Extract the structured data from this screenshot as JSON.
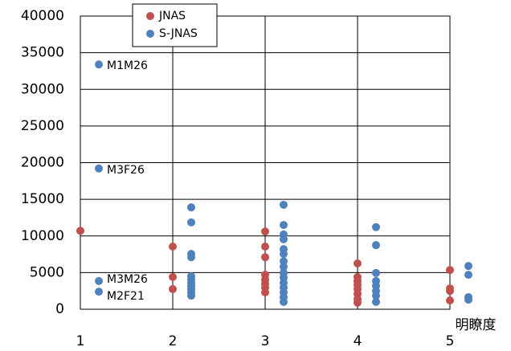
{
  "chart_data": {
    "type": "scatter",
    "x_label": "明瞭度",
    "xlim": [
      1,
      5
    ],
    "xticks": [
      1,
      2,
      3,
      4,
      5
    ],
    "ylim": [
      0,
      40000
    ],
    "yticks": [
      0,
      5000,
      10000,
      15000,
      20000,
      25000,
      30000,
      35000,
      40000
    ],
    "grid": true,
    "legend": "top",
    "series": [
      {
        "name": "JNAS",
        "color": "#c0504d",
        "x": [
          1,
          2,
          2,
          2,
          3,
          3,
          3,
          3,
          3,
          3,
          3,
          3,
          4,
          4,
          4,
          4,
          4,
          4,
          4,
          4,
          5,
          5,
          5,
          5
        ],
        "values": [
          10700,
          8550,
          4400,
          2750,
          10600,
          8550,
          7100,
          4700,
          4050,
          3500,
          2950,
          2300,
          6250,
          4400,
          3850,
          3300,
          2750,
          2100,
          1400,
          900,
          5350,
          2850,
          2500,
          1200
        ]
      },
      {
        "name": "S-JNAS",
        "color": "#4f81bd",
        "x": [
          1.2,
          1.2,
          1.2,
          1.2,
          2.2,
          2.2,
          2.2,
          2.2,
          2.2,
          2.2,
          2.2,
          2.2,
          2.2,
          2.2,
          2.2,
          3.2,
          3.2,
          3.2,
          3.2,
          3.2,
          3.2,
          3.2,
          3.2,
          3.2,
          3.2,
          3.2,
          3.2,
          3.2,
          3.2,
          3.2,
          4.2,
          4.2,
          4.2,
          4.2,
          4.2,
          4.2,
          4.2,
          4.2,
          5.2,
          5.2,
          5.2,
          5.2
        ],
        "values": [
          33400,
          19200,
          3850,
          2400,
          13900,
          11850,
          7550,
          7100,
          4500,
          4050,
          3600,
          3200,
          2750,
          2300,
          1850,
          14250,
          11500,
          10200,
          9550,
          8200,
          7550,
          6550,
          5800,
          4950,
          4300,
          3600,
          2950,
          2300,
          1650,
          1000,
          11200,
          8750,
          4950,
          3850,
          3200,
          2500,
          1850,
          1000,
          5900,
          4700,
          1650,
          1300
        ]
      }
    ],
    "annotations": [
      "M1M26",
      "M3F26",
      "M3M26",
      "M2F21"
    ]
  }
}
